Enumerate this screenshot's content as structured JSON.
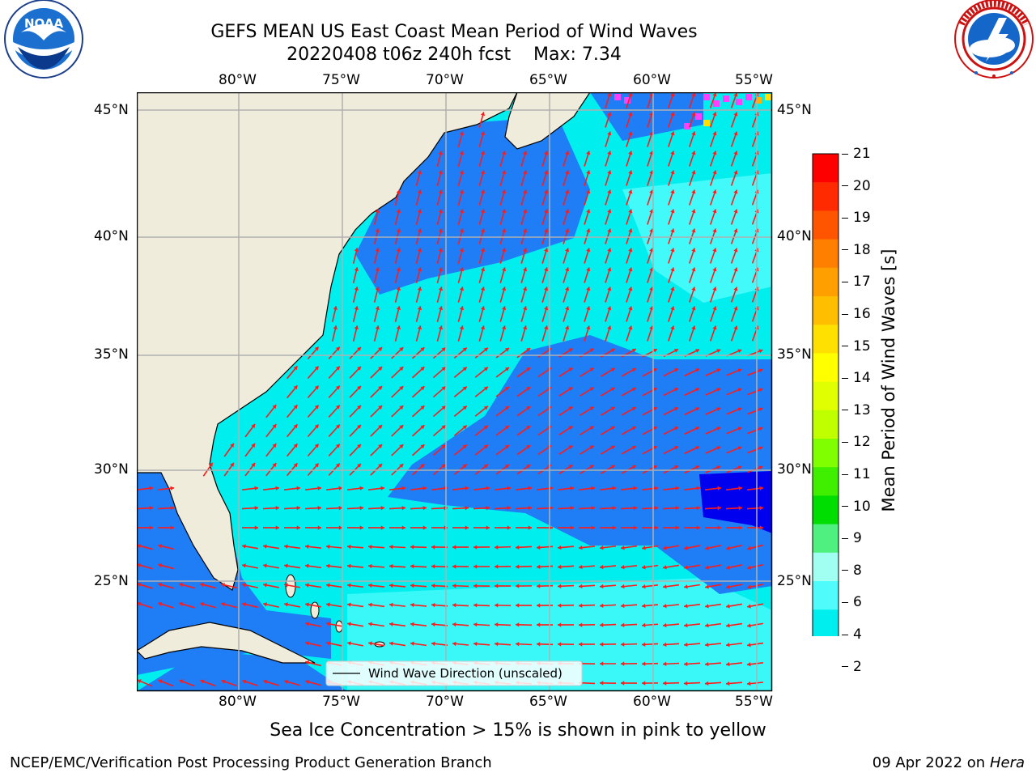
{
  "title_line1": "GEFS MEAN US East Coast Mean Period of Wind Waves",
  "title_line2": "20220408 t06z 240h fcst    Max: 7.34",
  "logos": {
    "left": {
      "name": "noaa-logo",
      "text": "NOAA",
      "ring_text": "NATIONAL OCEANIC AND ATMOSPHERIC ADMINISTRATION · U.S. DEPARTMENT OF COMMERCE"
    },
    "right": {
      "name": "nws-logo",
      "ring_text": "NATIONAL WEATHER SERVICE"
    }
  },
  "map": {
    "lon_labels": [
      "80°W",
      "75°W",
      "70°W",
      "65°W",
      "60°W",
      "55°W"
    ],
    "lat_labels": [
      "45°N",
      "40°N",
      "35°N",
      "30°N",
      "25°N"
    ],
    "legend_label": "Wind Wave Direction (unscaled)",
    "colors": {
      "land": "#efecdc",
      "band_2_4": "#1f7df5",
      "band_4_6": "#00eeee",
      "band_6_8": "#4ffbfb",
      "below_2": "#0000ee",
      "arrows": "#ff1a1a",
      "grid": "#b0b0b0"
    }
  },
  "colorbar": {
    "label": "Mean Period of Wind Waves [s]",
    "ticks": [
      "21",
      "20",
      "19",
      "18",
      "17",
      "16",
      "15",
      "14",
      "13",
      "12",
      "11",
      "10",
      "9",
      "8",
      "6",
      "4",
      "2"
    ],
    "colors_top_to_bottom": [
      "#ff0000",
      "#ff2a00",
      "#ff5500",
      "#ff7f00",
      "#ff9f00",
      "#ffbf00",
      "#ffe000",
      "#ffff00",
      "#e0ff00",
      "#c0ff00",
      "#80ff00",
      "#40ee00",
      "#00dd00",
      "#50f080",
      "#a0fff0",
      "#4ffbfb",
      "#00eeee",
      "#1f7df5"
    ],
    "extend_color": "#0000ee"
  },
  "caption": "Sea Ice Concentration > 15% is shown in pink to yellow",
  "footer_left": "NCEP/EMC/Verification Post Processing Product Generation Branch",
  "footer_right_date": "09 Apr 2022 on ",
  "footer_right_host": "Hera"
}
